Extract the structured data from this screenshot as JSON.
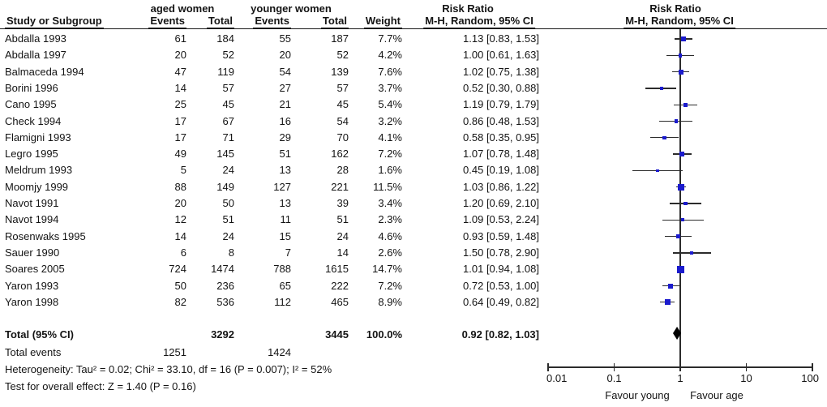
{
  "header": {
    "group1": "aged women",
    "group2": "younger women",
    "study_col": "Study or Subgroup",
    "events_col": "Events",
    "total_col": "Total",
    "weight_col": "Weight",
    "risk_ratio": "Risk Ratio",
    "method": "M-H, Random, 95% CI"
  },
  "footer": {
    "total_label": "Total (95% CI)",
    "total_events_label": "Total events",
    "heterogeneity": "Heterogeneity: Tau² = 0.02; Chi² = 33.10, df = 16 (P = 0.007); I² = 52%",
    "overall_effect": "Test for overall effect: Z = 1.40 (P = 0.16)"
  },
  "chart_data": {
    "type": "forest",
    "x_scale": "log10",
    "axis_range": [
      0.01,
      100
    ],
    "axis_ticks": [
      "0.01",
      "0.1",
      "1",
      "10",
      "100"
    ],
    "favour_left": "Favour young",
    "favour_right": "Favour age",
    "marker_color": "#1b1bcd",
    "studies": [
      {
        "name": "Abdalla 1993",
        "events1": 61,
        "total1": 184,
        "events2": 55,
        "total2": 187,
        "weight": "7.7%",
        "weight_pct": 7.7,
        "rr": 1.13,
        "ci_low": 0.83,
        "ci_high": 1.53,
        "ci_text": "1.13 [0.83, 1.53]"
      },
      {
        "name": "Abdalla 1997",
        "events1": 20,
        "total1": 52,
        "events2": 20,
        "total2": 52,
        "weight": "4.2%",
        "weight_pct": 4.2,
        "rr": 1.0,
        "ci_low": 0.61,
        "ci_high": 1.63,
        "ci_text": "1.00 [0.61, 1.63]"
      },
      {
        "name": "Balmaceda 1994",
        "events1": 47,
        "total1": 119,
        "events2": 54,
        "total2": 139,
        "weight": "7.6%",
        "weight_pct": 7.6,
        "rr": 1.02,
        "ci_low": 0.75,
        "ci_high": 1.38,
        "ci_text": "1.02 [0.75, 1.38]"
      },
      {
        "name": "Borini 1996",
        "events1": 14,
        "total1": 57,
        "events2": 27,
        "total2": 57,
        "weight": "3.7%",
        "weight_pct": 3.7,
        "rr": 0.52,
        "ci_low": 0.3,
        "ci_high": 0.88,
        "ci_text": "0.52 [0.30, 0.88]"
      },
      {
        "name": "Cano 1995",
        "events1": 25,
        "total1": 45,
        "events2": 21,
        "total2": 45,
        "weight": "5.4%",
        "weight_pct": 5.4,
        "rr": 1.19,
        "ci_low": 0.79,
        "ci_high": 1.79,
        "ci_text": "1.19 [0.79, 1.79]"
      },
      {
        "name": "Check 1994",
        "events1": 17,
        "total1": 67,
        "events2": 16,
        "total2": 54,
        "weight": "3.2%",
        "weight_pct": 3.2,
        "rr": 0.86,
        "ci_low": 0.48,
        "ci_high": 1.53,
        "ci_text": "0.86 [0.48, 1.53]"
      },
      {
        "name": "Flamigni 1993",
        "events1": 17,
        "total1": 71,
        "events2": 29,
        "total2": 70,
        "weight": "4.1%",
        "weight_pct": 4.1,
        "rr": 0.58,
        "ci_low": 0.35,
        "ci_high": 0.95,
        "ci_text": "0.58 [0.35, 0.95]"
      },
      {
        "name": "Legro 1995",
        "events1": 49,
        "total1": 145,
        "events2": 51,
        "total2": 162,
        "weight": "7.2%",
        "weight_pct": 7.2,
        "rr": 1.07,
        "ci_low": 0.78,
        "ci_high": 1.48,
        "ci_text": "1.07 [0.78, 1.48]"
      },
      {
        "name": "Meldrum 1993",
        "events1": 5,
        "total1": 24,
        "events2": 13,
        "total2": 28,
        "weight": "1.6%",
        "weight_pct": 1.6,
        "rr": 0.45,
        "ci_low": 0.19,
        "ci_high": 1.08,
        "ci_text": "0.45 [0.19, 1.08]"
      },
      {
        "name": "Moomjy 1999",
        "events1": 88,
        "total1": 149,
        "events2": 127,
        "total2": 221,
        "weight": "11.5%",
        "weight_pct": 11.5,
        "rr": 1.03,
        "ci_low": 0.86,
        "ci_high": 1.22,
        "ci_text": "1.03 [0.86, 1.22]"
      },
      {
        "name": "Navot 1991",
        "events1": 20,
        "total1": 50,
        "events2": 13,
        "total2": 39,
        "weight": "3.4%",
        "weight_pct": 3.4,
        "rr": 1.2,
        "ci_low": 0.69,
        "ci_high": 2.1,
        "ci_text": "1.20 [0.69, 2.10]"
      },
      {
        "name": "Navot 1994",
        "events1": 12,
        "total1": 51,
        "events2": 11,
        "total2": 51,
        "weight": "2.3%",
        "weight_pct": 2.3,
        "rr": 1.09,
        "ci_low": 0.53,
        "ci_high": 2.24,
        "ci_text": "1.09 [0.53, 2.24]"
      },
      {
        "name": "Rosenwaks 1995",
        "events1": 14,
        "total1": 24,
        "events2": 15,
        "total2": 24,
        "weight": "4.6%",
        "weight_pct": 4.6,
        "rr": 0.93,
        "ci_low": 0.59,
        "ci_high": 1.48,
        "ci_text": "0.93 [0.59, 1.48]"
      },
      {
        "name": "Sauer 1990",
        "events1": 6,
        "total1": 8,
        "events2": 7,
        "total2": 14,
        "weight": "2.6%",
        "weight_pct": 2.6,
        "rr": 1.5,
        "ci_low": 0.78,
        "ci_high": 2.9,
        "ci_text": "1.50 [0.78, 2.90]"
      },
      {
        "name": "Soares 2005",
        "events1": 724,
        "total1": 1474,
        "events2": 788,
        "total2": 1615,
        "weight": "14.7%",
        "weight_pct": 14.7,
        "rr": 1.01,
        "ci_low": 0.94,
        "ci_high": 1.08,
        "ci_text": "1.01 [0.94, 1.08]"
      },
      {
        "name": "Yaron 1993",
        "events1": 50,
        "total1": 236,
        "events2": 65,
        "total2": 222,
        "weight": "7.2%",
        "weight_pct": 7.2,
        "rr": 0.72,
        "ci_low": 0.53,
        "ci_high": 1.0,
        "ci_text": "0.72 [0.53, 1.00]"
      },
      {
        "name": "Yaron 1998",
        "events1": 82,
        "total1": 536,
        "events2": 112,
        "total2": 465,
        "weight": "8.9%",
        "weight_pct": 8.9,
        "rr": 0.64,
        "ci_low": 0.49,
        "ci_high": 0.82,
        "ci_text": "0.64 [0.49, 0.82]"
      }
    ],
    "total": {
      "total1": 3292,
      "total2": 3445,
      "weight": "100.0%",
      "rr": 0.92,
      "ci_low": 0.82,
      "ci_high": 1.03,
      "ci_text": "0.92 [0.82, 1.03]",
      "events1": 1251,
      "events2": 1424
    }
  }
}
